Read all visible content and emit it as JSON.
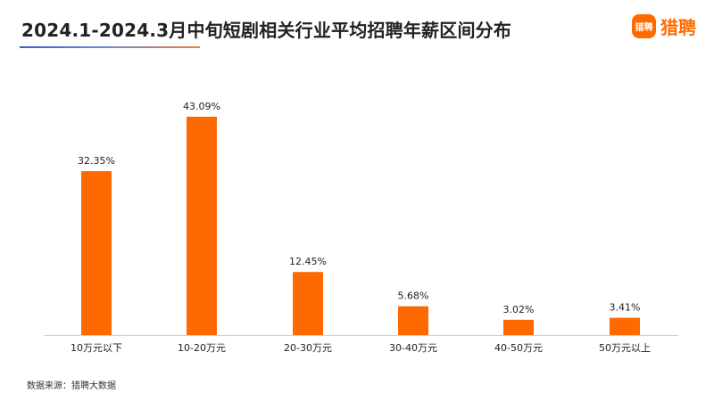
{
  "title": "2024.1-2024.3月中旬短剧相关行业平均招聘年薪区间分布",
  "logo": {
    "badge_text": "猎聘",
    "brand_text": "猎聘",
    "color": "#ff6a00"
  },
  "source": "数据来源：猎聘大数据",
  "colors": {
    "bar": "#ff6a00",
    "axis": "#d0d0d0",
    "underline_start": "#2f62c9",
    "underline_end": "#ef7d3a"
  },
  "chart_data": {
    "type": "bar",
    "categories": [
      "10万元以下",
      "10-20万元",
      "20-30万元",
      "30-40万元",
      "40-50万元",
      "50万元以上"
    ],
    "values": [
      32.35,
      43.09,
      12.45,
      5.68,
      3.02,
      3.41
    ],
    "value_labels": [
      "32.35%",
      "43.09%",
      "12.45%",
      "5.68%",
      "3.02%",
      "3.41%"
    ],
    "unit": "%",
    "ylim": [
      0,
      43.09
    ],
    "grid": false,
    "legend": "none"
  }
}
